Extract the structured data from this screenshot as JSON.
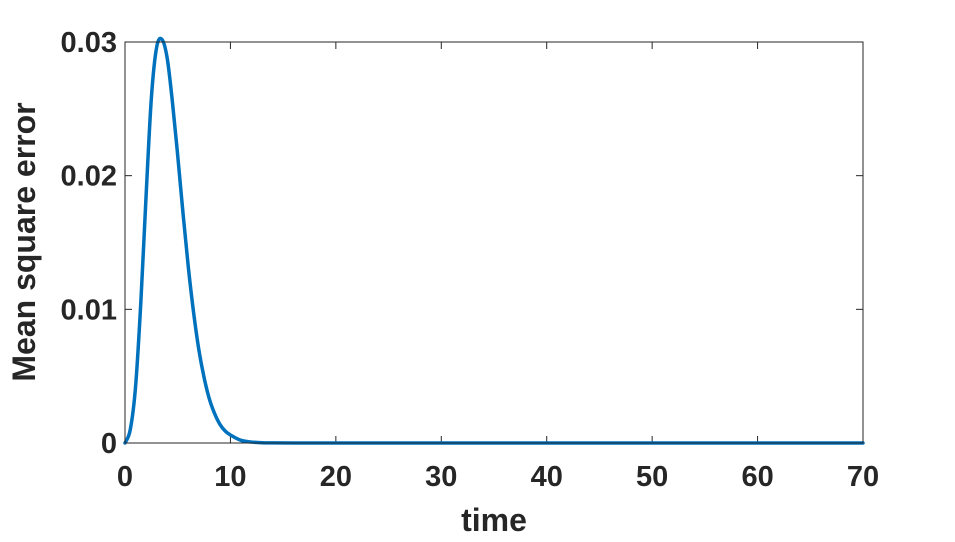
{
  "chart_data": {
    "type": "line",
    "title": "",
    "xlabel": "time",
    "ylabel": "Mean square error",
    "xlim": [
      0,
      70
    ],
    "ylim": [
      0,
      0.03
    ],
    "xticks": [
      0,
      10,
      20,
      30,
      40,
      50,
      60,
      70
    ],
    "xtick_labels": [
      "0",
      "10",
      "20",
      "30",
      "40",
      "50",
      "60",
      "70"
    ],
    "yticks": [
      0,
      0.01,
      0.02,
      0.03
    ],
    "ytick_labels": [
      "0",
      "0.01",
      "0.02",
      "0.03"
    ],
    "grid": false,
    "legend": "none",
    "line_color": "#0072BD",
    "series": [
      {
        "x": [
          0,
          0.5,
          1,
          1.5,
          2,
          2.5,
          3,
          3.5,
          4,
          4.5,
          5,
          5.5,
          6,
          6.5,
          7,
          7.5,
          8,
          8.5,
          9,
          9.5,
          10,
          11,
          12,
          13,
          14,
          16,
          20,
          30,
          40,
          50,
          60,
          70
        ],
        "y": [
          0,
          0.001,
          0.0042,
          0.0105,
          0.0185,
          0.0258,
          0.0296,
          0.0302,
          0.0288,
          0.0255,
          0.0215,
          0.0172,
          0.0132,
          0.0098,
          0.007,
          0.0049,
          0.0033,
          0.0022,
          0.0014,
          0.0009,
          0.0006,
          0.0002,
          7e-05,
          2e-05,
          1e-05,
          0,
          0,
          0,
          0,
          0,
          0,
          0
        ]
      }
    ]
  }
}
